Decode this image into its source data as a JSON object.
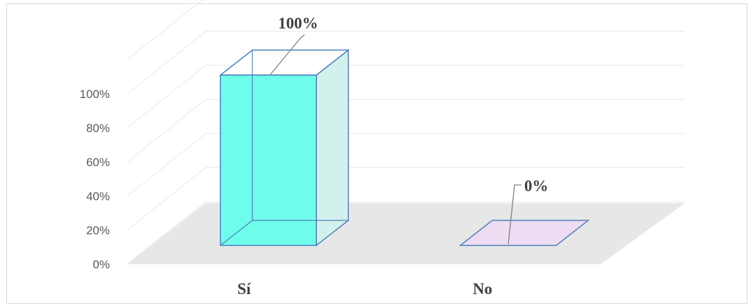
{
  "chart_data": {
    "type": "bar",
    "style": "3d-column",
    "categories": [
      "Sí",
      "No"
    ],
    "values": [
      100,
      0
    ],
    "data_labels": [
      "100%",
      "0%"
    ],
    "title": "",
    "xlabel": "",
    "ylabel": "",
    "ylim": [
      0,
      100
    ],
    "y_ticks": [
      "0%",
      "20%",
      "40%",
      "60%",
      "80%",
      "100%"
    ],
    "grid": true,
    "legend": "none",
    "colors": {
      "bar_si_front": "#6ffdeb",
      "bar_si_side": "#d3f1ec",
      "bar_no_front": "#eedcf2",
      "bar_edge": "#4f81bd",
      "floor": "#e7e7e7",
      "gridline": "#ececec",
      "leader_line": "#7f7f7f"
    }
  }
}
